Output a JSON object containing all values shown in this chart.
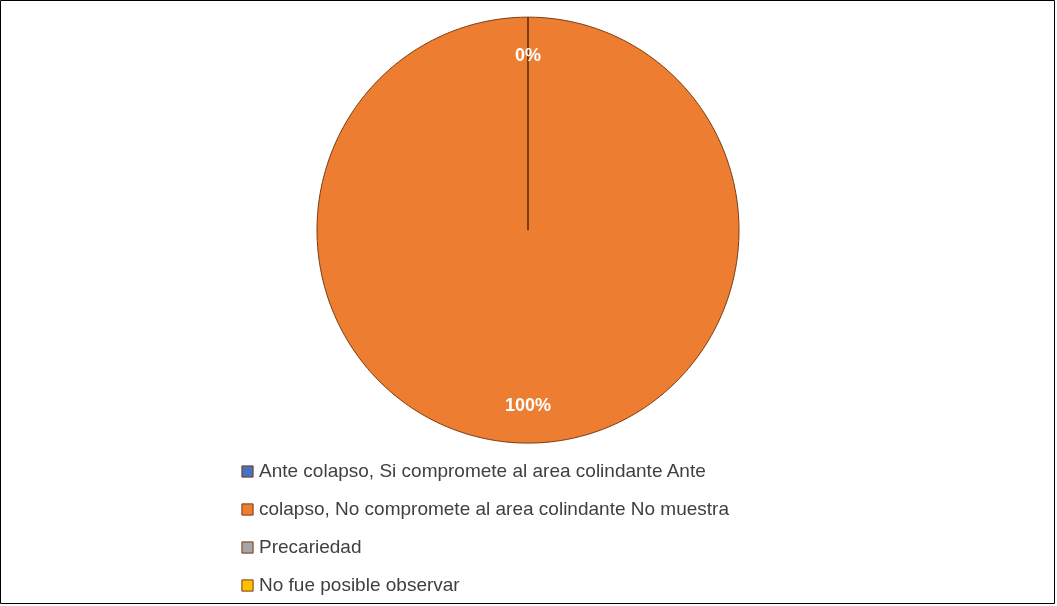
{
  "chart_data": {
    "type": "pie",
    "categories": [
      "Ante colapso, Si compromete al area colindante Ante",
      "colapso, No compromete al area colindante No muestra",
      "Precariedad",
      "No fue posible observar"
    ],
    "values": [
      0,
      100,
      0,
      0
    ],
    "colors": [
      "#4472c4",
      "#ed7d31",
      "#a5a5a5",
      "#ffc000"
    ],
    "value_labels": [
      "0%",
      "100%",
      null,
      null
    ],
    "legend": "bottom"
  }
}
